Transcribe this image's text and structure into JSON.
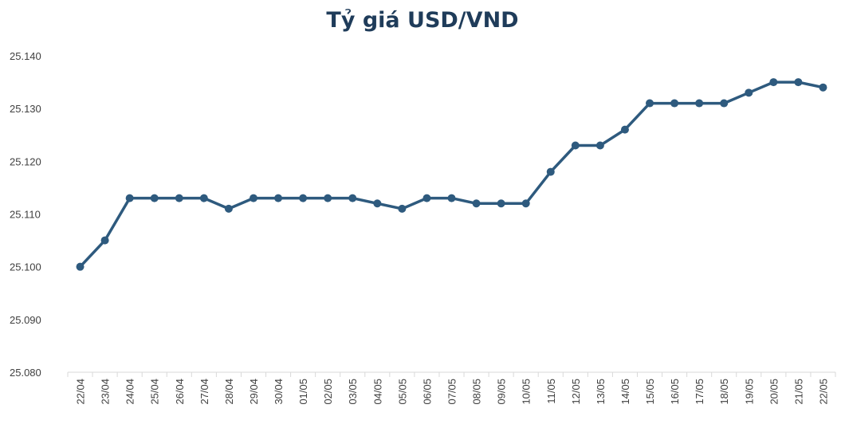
{
  "chart_data": {
    "type": "line",
    "title": "Tỷ giá USD/VND",
    "xlabel": "",
    "ylabel": "",
    "ylim": [
      25080,
      25140
    ],
    "yticks": [
      25080,
      25090,
      25100,
      25110,
      25120,
      25130,
      25140
    ],
    "ytick_labels": [
      "25.080",
      "25.090",
      "25.100",
      "25.110",
      "25.120",
      "25.130",
      "25.140"
    ],
    "grid": false,
    "legend": "none",
    "line_color": "#2e5a7e",
    "categories": [
      "22/04",
      "23/04",
      "24/04",
      "25/04",
      "26/04",
      "27/04",
      "28/04",
      "29/04",
      "30/04",
      "01/05",
      "02/05",
      "03/05",
      "04/05",
      "05/05",
      "06/05",
      "07/05",
      "08/05",
      "09/05",
      "10/05",
      "11/05",
      "12/05",
      "13/05",
      "14/05",
      "15/05",
      "16/05",
      "17/05",
      "18/05",
      "19/05",
      "20/05",
      "21/05",
      "22/05"
    ],
    "series": [
      {
        "values": [
          25100,
          25105,
          25113,
          25113,
          25113,
          25113,
          25111,
          25113,
          25113,
          25113,
          25113,
          25113,
          25112,
          25111,
          25113,
          25113,
          25112,
          25112,
          25112,
          25118,
          25123,
          25123,
          25126,
          25131,
          25131,
          25131,
          25131,
          25133,
          25135,
          25135,
          25134
        ]
      }
    ]
  }
}
